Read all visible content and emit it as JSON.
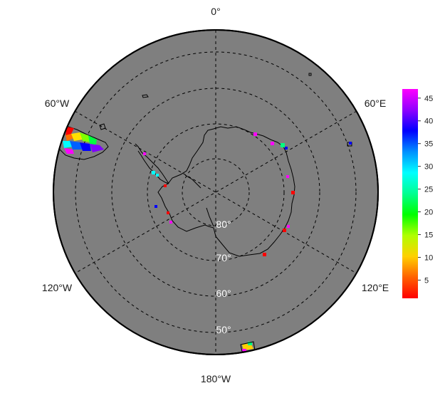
{
  "map": {
    "projection": "south-polar-stereographic",
    "ocean_color": "#7f7f7f",
    "graticule_style": "dashed",
    "lon_labels": {
      "top": "0°",
      "upper_left": "60°W",
      "upper_right": "60°E",
      "lower_left": "120°W",
      "lower_right": "120°E",
      "bottom": "180°W"
    },
    "lat_labels": [
      "80°",
      "70°",
      "60°",
      "50°"
    ]
  },
  "colorbar": {
    "colormap": "rainbow (red → magenta)",
    "min": 1,
    "max": 47,
    "ticks": [
      "5",
      "10",
      "15",
      "20",
      "25",
      "30",
      "35",
      "40",
      "45"
    ]
  }
}
